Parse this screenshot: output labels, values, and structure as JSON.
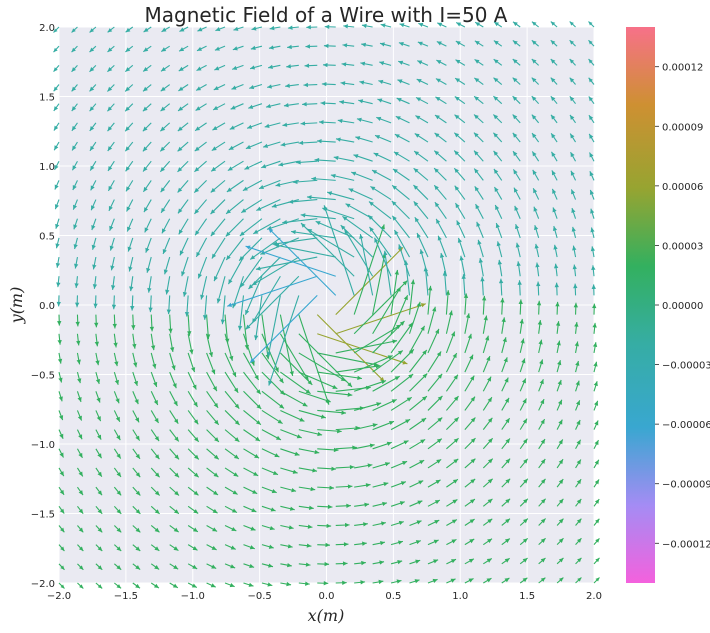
{
  "chart_data": {
    "type": "quiver",
    "title": "Magnetic Field of a Wire with I=50 A",
    "xlabel": "x(m)",
    "ylabel": "y(m)",
    "xlim": [
      -2.0,
      2.0
    ],
    "ylim": [
      -2.0,
      2.0
    ],
    "x_ticks": [
      "−2.0",
      "−1.5",
      "−1.0",
      "−0.5",
      "0.0",
      "0.5",
      "1.0",
      "1.5",
      "2.0"
    ],
    "y_ticks": [
      "−2.0",
      "−1.5",
      "−1.0",
      "−0.5",
      "0.0",
      "0.5",
      "1.0",
      "1.5",
      "2.0"
    ],
    "grid": true,
    "field": {
      "current_A": 50,
      "wire_position": [
        0.0,
        0.0
      ],
      "grid_points": [
        -2.0,
        2.0,
        30
      ],
      "circulation": "counter-clockwise"
    },
    "colorbar": {
      "range": [
        -0.00014,
        0.00014
      ],
      "ticks": [
        "0.00012",
        "0.00009",
        "0.00006",
        "0.00003",
        "0.00000",
        "−0.00003",
        "−0.00006",
        "−0.00009",
        "−0.00012"
      ],
      "tick_values": [
        0.00012,
        9e-05,
        6e-05,
        3e-05,
        0.0,
        -3e-05,
        -6e-05,
        -9e-05,
        -0.00012
      ],
      "palette": [
        "#f461dd",
        "#a48cf4",
        "#39a7d0",
        "#36ada4",
        "#33b05f",
        "#97a431",
        "#ce9032",
        "#f77189"
      ]
    },
    "background": "#eaeaf2",
    "grid_color": "#ffffff"
  }
}
